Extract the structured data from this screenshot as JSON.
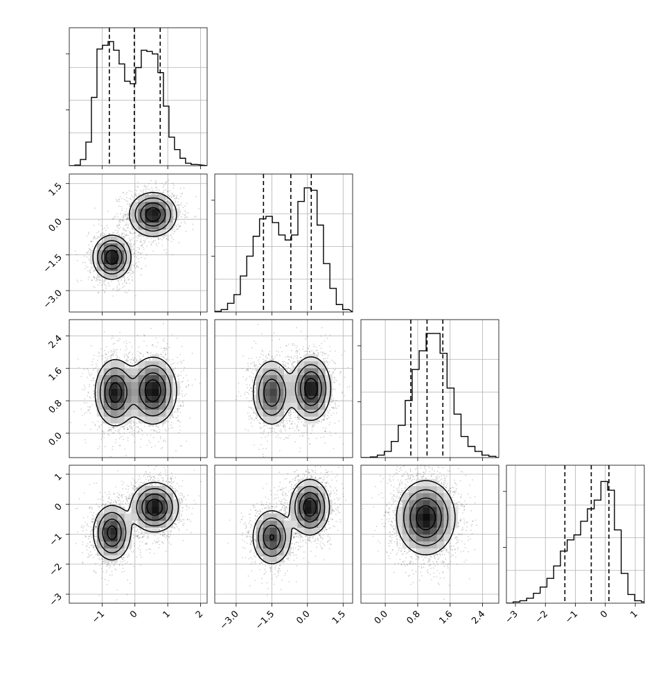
{
  "chart_data": {
    "type": "corner",
    "variables": 4,
    "grid": true,
    "quantile_lines": "dashed",
    "axes": [
      {
        "range": [
          -2.0,
          2.2
        ],
        "ticks": [
          -1,
          0,
          1,
          2
        ],
        "tick_labels": [
          "−1",
          "0",
          "1",
          "2"
        ]
      },
      {
        "range": [
          -3.9,
          1.9
        ],
        "ticks": [
          -3.0,
          -1.5,
          0.0,
          1.5
        ],
        "tick_labels": [
          "−3.0",
          "−1.5",
          "0.0",
          "1.5"
        ]
      },
      {
        "range": [
          -0.6,
          2.8
        ],
        "ticks": [
          0.0,
          0.8,
          1.6,
          2.4
        ],
        "tick_labels": [
          "0.0",
          "0.8",
          "1.6",
          "2.4"
        ]
      },
      {
        "range": [
          -3.3,
          1.3
        ],
        "ticks": [
          -3,
          -2,
          -1,
          0,
          1
        ],
        "tick_labels": [
          "−3",
          "−2",
          "−1",
          "0",
          "1"
        ]
      }
    ],
    "histograms": [
      {
        "variable": 0,
        "bin_edges": [
          -2.0,
          1.88
        ],
        "counts": [
          0.0,
          0.005,
          0.05,
          0.19,
          0.55,
          0.94,
          0.97,
          1.0,
          0.93,
          0.82,
          0.68,
          0.66,
          0.79,
          0.93,
          0.92,
          0.9,
          0.75,
          0.48,
          0.23,
          0.13,
          0.06,
          0.02,
          0.01
        ],
        "quantiles": [
          -0.78,
          -0.02,
          0.77
        ]
      },
      {
        "variable": 1,
        "bin_edges": [
          -3.9,
          1.75
        ],
        "counts": [
          0.005,
          0.02,
          0.07,
          0.14,
          0.29,
          0.45,
          0.61,
          0.75,
          0.77,
          0.72,
          0.62,
          0.58,
          0.62,
          0.89,
          1.0,
          0.98,
          0.7,
          0.39,
          0.19,
          0.06,
          0.02
        ],
        "quantiles": [
          -1.85,
          -0.7,
          0.16
        ]
      },
      {
        "variable": 2,
        "bin_edges": [
          -0.54,
          2.9
        ],
        "counts": [
          0.0,
          0.005,
          0.02,
          0.05,
          0.13,
          0.26,
          0.46,
          0.71,
          0.86,
          1.0,
          1.0,
          0.84,
          0.56,
          0.35,
          0.17,
          0.09,
          0.05,
          0.02,
          0.01,
          0.0
        ],
        "quantiles": [
          0.63,
          1.03,
          1.42
        ]
      },
      {
        "variable": 3,
        "bin_edges": [
          -3.3,
          1.43
        ],
        "counts": [
          0.0,
          0.01,
          0.02,
          0.04,
          0.08,
          0.13,
          0.2,
          0.3,
          0.42,
          0.51,
          0.55,
          0.66,
          0.76,
          0.83,
          0.98,
          0.91,
          0.59,
          0.24,
          0.07,
          0.02,
          0.01
        ],
        "quantiles": [
          -1.35,
          -0.47,
          0.12
        ]
      }
    ],
    "scatter_panels": [
      {
        "row": 1,
        "col": 0,
        "modes": [
          {
            "mean": [
              0.55,
              0.2
            ],
            "sd": [
              0.35,
              0.45
            ],
            "weight": 0.55
          },
          {
            "mean": [
              -0.7,
              -1.6
            ],
            "sd": [
              0.28,
              0.45
            ],
            "weight": 0.45
          }
        ]
      },
      {
        "row": 2,
        "col": 0,
        "modes": [
          {
            "mean": [
              -0.6,
              1.0
            ],
            "sd": [
              0.3,
              0.4
            ],
            "weight": 0.45
          },
          {
            "mean": [
              0.55,
              1.05
            ],
            "sd": [
              0.35,
              0.4
            ],
            "weight": 0.55
          }
        ]
      },
      {
        "row": 2,
        "col": 1,
        "modes": [
          {
            "mean": [
              -1.5,
              1.0
            ],
            "sd": [
              0.4,
              0.4
            ],
            "weight": 0.45
          },
          {
            "mean": [
              0.15,
              1.1
            ],
            "sd": [
              0.4,
              0.38
            ],
            "weight": 0.55
          }
        ]
      },
      {
        "row": 3,
        "col": 0,
        "modes": [
          {
            "mean": [
              0.6,
              -0.1
            ],
            "sd": [
              0.35,
              0.4
            ],
            "weight": 0.55
          },
          {
            "mean": [
              -0.7,
              -0.95
            ],
            "sd": [
              0.28,
              0.45
            ],
            "weight": 0.45
          }
        ]
      },
      {
        "row": 3,
        "col": 1,
        "modes": [
          {
            "mean": [
              0.1,
              -0.1
            ],
            "sd": [
              0.4,
              0.45
            ],
            "weight": 0.55
          },
          {
            "mean": [
              -1.5,
              -1.1
            ],
            "sd": [
              0.4,
              0.45
            ],
            "weight": 0.45
          }
        ]
      },
      {
        "row": 3,
        "col": 2,
        "modes": [
          {
            "mean": [
              1.0,
              -0.45
            ],
            "sd": [
              0.35,
              0.6
            ],
            "weight": 1.0
          }
        ]
      }
    ]
  }
}
